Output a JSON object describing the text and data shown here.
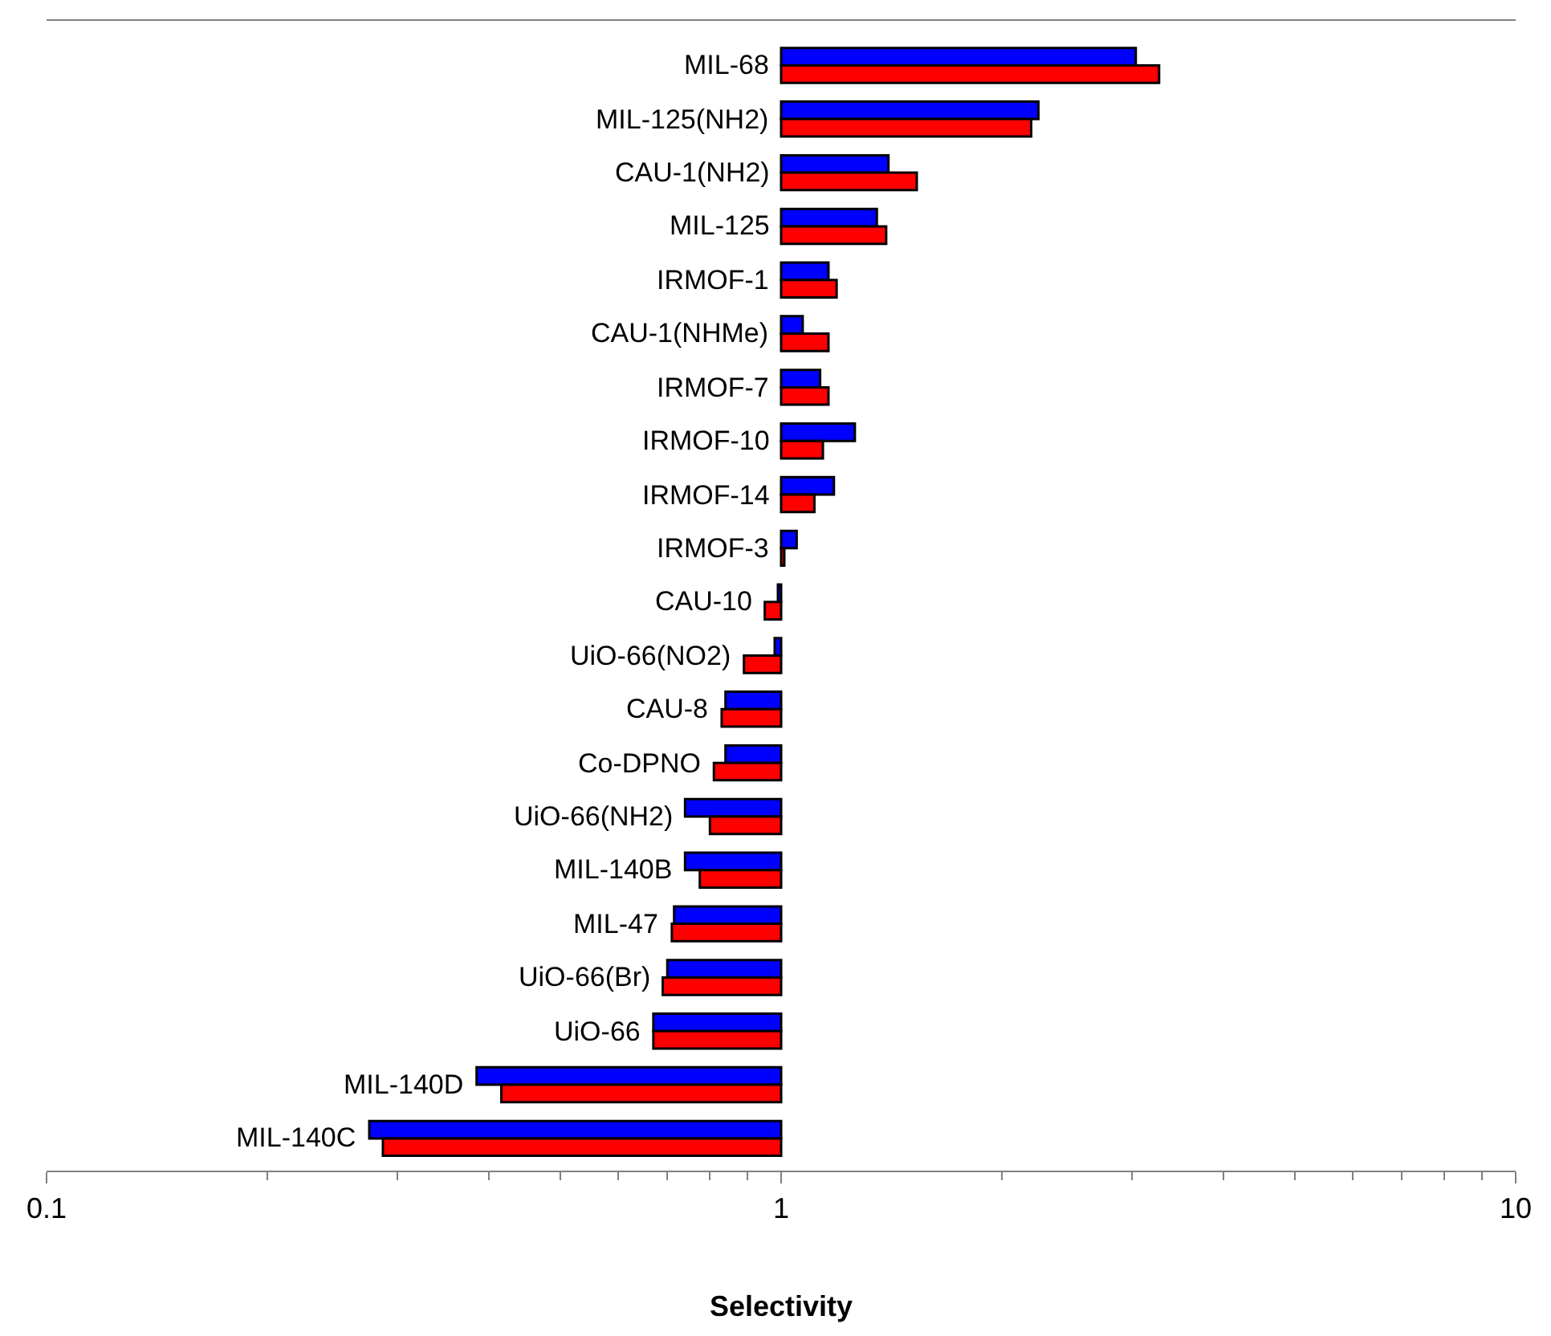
{
  "chart_data": {
    "type": "bar",
    "orientation": "horizontal",
    "log": "x",
    "xlabel": "Selectivity",
    "categories": [
      "MIL-68",
      "MIL-125(NH2)",
      "CAU-1(NH2)",
      "MIL-125",
      "IRMOF-1",
      "CAU-1(NHMe)",
      "IRMOF-7",
      "IRMOF-10",
      "IRMOF-14",
      "IRMOF-3",
      "CAU-10",
      "UiO-66(NO2)",
      "CAU-8",
      "Co-DPNO",
      "UiO-66(NH2)",
      "MIL-140B",
      "MIL-47",
      "UiO-66(Br)",
      "UiO-66",
      "MIL-140D",
      "MIL-140C"
    ],
    "series": [
      {
        "color": "#0000ff",
        "base": [
          1,
          1,
          1,
          1,
          1,
          1,
          1,
          1,
          1,
          1,
          1,
          1,
          1,
          1,
          1,
          1,
          1,
          1,
          1,
          1,
          1
        ],
        "values": [
          2.04,
          1.24,
          0.4,
          0.35,
          0.16,
          0.07,
          0.13,
          0.26,
          0.18,
          0.05,
          -0.01,
          -0.02,
          -0.16,
          -0.16,
          -0.26,
          -0.26,
          -0.285,
          -0.3,
          -0.33,
          -0.615,
          -0.725
        ]
      },
      {
        "color": "#ff0000",
        "base": [
          1,
          1,
          1,
          1,
          1,
          1,
          1,
          1,
          1,
          1,
          1,
          1,
          1,
          1,
          1,
          1,
          1,
          1,
          1,
          1,
          1
        ],
        "values": [
          2.27,
          1.19,
          0.53,
          0.39,
          0.19,
          0.16,
          0.16,
          0.14,
          0.11,
          0.01,
          -0.05,
          -0.11,
          -0.17,
          -0.19,
          -0.2,
          -0.225,
          -0.29,
          -0.31,
          -0.33,
          -0.584,
          -0.713
        ]
      }
    ],
    "xlim": [
      0.1,
      10
    ],
    "xticks": [
      0.1,
      1,
      10
    ]
  }
}
